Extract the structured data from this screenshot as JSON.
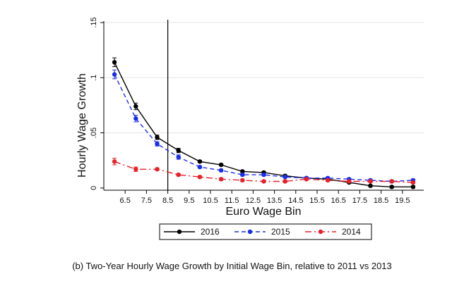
{
  "chart_data": {
    "type": "line",
    "xlabel": "Euro Wage Bin",
    "ylabel": "Hourly Wage Growth",
    "x": [
      6,
      7,
      8,
      9,
      10,
      11,
      12,
      13,
      14,
      15,
      16,
      17,
      18,
      19,
      20
    ],
    "xlim": [
      5.5,
      20.5
    ],
    "ylim": [
      -0.002,
      0.15
    ],
    "xticks": [
      6.5,
      7.5,
      8.5,
      9.5,
      10.5,
      11.5,
      12.5,
      13.5,
      14.5,
      15.5,
      16.5,
      17.5,
      18.5,
      19.5
    ],
    "xtick_labels": [
      "6.5",
      "7.5",
      "8.5",
      "9.5",
      "10.5",
      "11.5",
      "12.5",
      "13.5",
      "14.5",
      "15.5",
      "16.5",
      "17.5",
      "18.5",
      "19.5"
    ],
    "yticks": [
      0,
      0.05,
      0.1,
      0.15
    ],
    "ytick_labels": [
      "0",
      ".05",
      ".1",
      ".15"
    ],
    "vline_x": 8.5,
    "grid": true,
    "legend_position": "bottom",
    "series": [
      {
        "name": "2016",
        "color": "#000000",
        "line_style": "solid",
        "values": [
          0.114,
          0.074,
          0.046,
          0.034,
          0.024,
          0.021,
          0.015,
          0.014,
          0.011,
          0.009,
          0.008,
          0.005,
          0.002,
          0.001,
          0.001
        ],
        "errors": [
          0.004,
          0.003,
          0.002,
          0.002,
          0.001,
          0.001,
          0.001,
          0.001,
          0.001,
          0.001,
          0.001,
          0.001,
          0.001,
          0.001,
          0.001
        ]
      },
      {
        "name": "2015",
        "color": "#1a2ee8",
        "line_style": "dashed",
        "values": [
          0.103,
          0.063,
          0.04,
          0.028,
          0.019,
          0.016,
          0.012,
          0.012,
          0.01,
          0.009,
          0.009,
          0.008,
          0.007,
          0.006,
          0.007
        ],
        "errors": [
          0.004,
          0.003,
          0.002,
          0.002,
          0.001,
          0.001,
          0.001,
          0.001,
          0.001,
          0.001,
          0.001,
          0.001,
          0.001,
          0.001,
          0.001
        ]
      },
      {
        "name": "2014",
        "color": "#e8202a",
        "line_style": "dashdot",
        "values": [
          0.024,
          0.017,
          0.017,
          0.012,
          0.01,
          0.008,
          0.007,
          0.006,
          0.006,
          0.008,
          0.007,
          0.006,
          0.006,
          0.006,
          0.005
        ],
        "errors": [
          0.003,
          0.002,
          0.001,
          0.001,
          0.001,
          0.001,
          0.001,
          0.001,
          0.001,
          0.001,
          0.001,
          0.001,
          0.001,
          0.001,
          0.001
        ]
      }
    ]
  },
  "caption": "(b) Two-Year Hourly Wage Growth by Initial Wage Bin, relative to 2011 vs 2013"
}
